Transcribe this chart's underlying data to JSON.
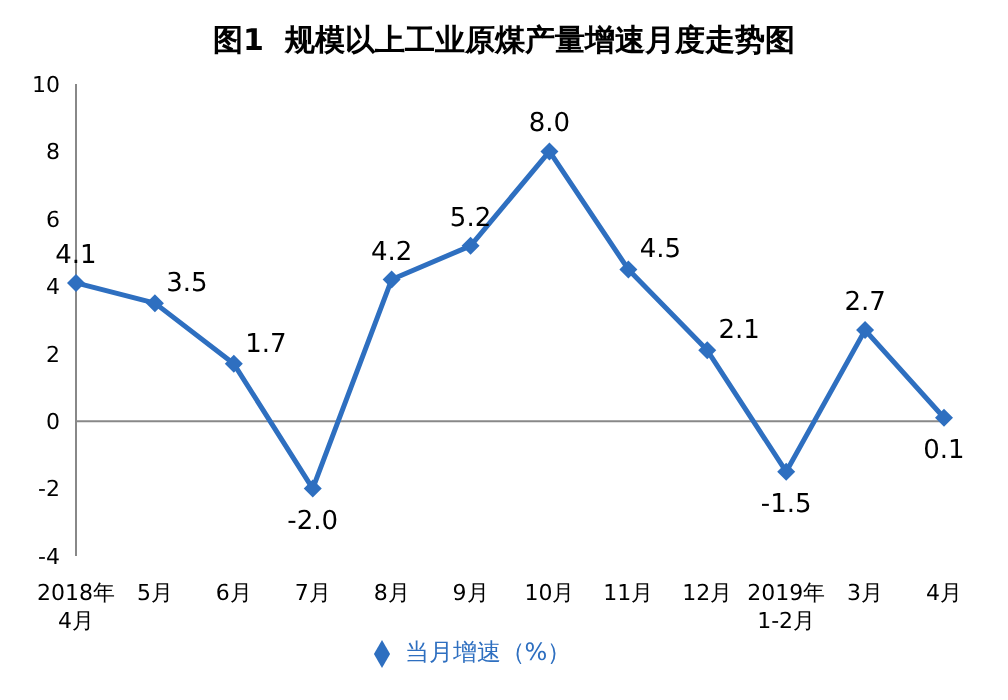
{
  "chart_data": {
    "type": "line",
    "title": "图1  规模以上工业原煤产量增速月度走势图",
    "categories": [
      "2018年4月",
      "5月",
      "6月",
      "7月",
      "8月",
      "9月",
      "10月",
      "11月",
      "12月",
      "2019年1-2月",
      "3月",
      "4月"
    ],
    "series": [
      {
        "name": "当月增速（%）",
        "color": "#2e6fc0",
        "values": [
          4.1,
          3.5,
          1.7,
          -2.0,
          4.2,
          5.2,
          8.0,
          4.5,
          2.1,
          -1.5,
          2.7,
          0.1
        ],
        "value_labels": [
          "4.1",
          "3.5",
          "1.7",
          "-2.0",
          "4.2",
          "5.2",
          "8.0",
          "4.5",
          "2.1",
          "-1.5",
          "2.7",
          "0.1"
        ]
      }
    ],
    "ref_lines": [
      {
        "axis": "y",
        "value": 0,
        "color": "#888888"
      }
    ],
    "ylim": [
      -4,
      10
    ],
    "yticks": [
      -4,
      -2,
      0,
      2,
      4,
      6,
      8,
      10
    ],
    "legend": "bottom",
    "marker": "diamond",
    "line_style": "solid"
  }
}
